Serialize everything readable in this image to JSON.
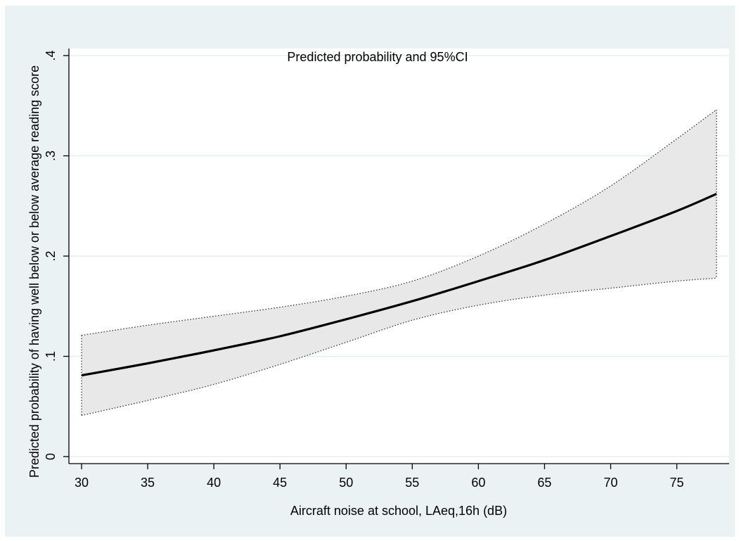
{
  "chart_data": {
    "type": "line",
    "title": "Predicted probability and 95%CI",
    "xlabel": "Aircraft noise at school, LAeq,16h (dB)",
    "ylabel": "Predicted probability of having well below or below average reading score",
    "xlim": [
      30,
      78
    ],
    "ylim": [
      0,
      0.4
    ],
    "x_ticks": [
      30,
      35,
      40,
      45,
      50,
      55,
      60,
      65,
      70,
      75
    ],
    "x_tick_labels": [
      "30",
      "35",
      "40",
      "45",
      "50",
      "55",
      "60",
      "65",
      "70",
      "75"
    ],
    "y_ticks": [
      0,
      0.1,
      0.2,
      0.3,
      0.4
    ],
    "y_tick_labels": [
      "0",
      ".1",
      ".2",
      ".3",
      ".4"
    ],
    "grid": true,
    "x": [
      30,
      35,
      40,
      45,
      50,
      55,
      60,
      65,
      70,
      75,
      78
    ],
    "series": [
      {
        "role": "estimate",
        "values": [
          0.081,
          0.093,
          0.106,
          0.12,
          0.137,
          0.155,
          0.175,
          0.196,
          0.22,
          0.245,
          0.262
        ]
      },
      {
        "role": "upper",
        "values": [
          0.121,
          0.131,
          0.14,
          0.149,
          0.16,
          0.175,
          0.2,
          0.232,
          0.27,
          0.317,
          0.346
        ]
      },
      {
        "role": "lower",
        "values": [
          0.041,
          0.056,
          0.072,
          0.092,
          0.114,
          0.136,
          0.151,
          0.161,
          0.168,
          0.175,
          0.178
        ]
      }
    ],
    "colors": {
      "background": "#eaf2f3",
      "plot_area": "#ffffff",
      "grid": "#e6eff0",
      "ci_fill": "#e8e8e8",
      "line": "#000000"
    }
  }
}
